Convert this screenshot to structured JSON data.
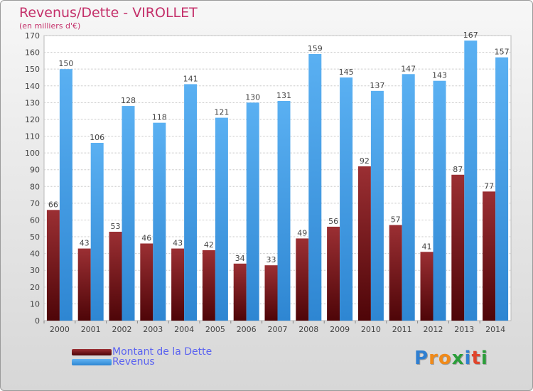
{
  "chart_data": {
    "type": "bar",
    "title": "Revenus/Dette - VIROLLET",
    "subtitle": "(en milliers d'€)",
    "categories": [
      "2000",
      "2001",
      "2002",
      "2003",
      "2004",
      "2005",
      "2006",
      "2007",
      "2008",
      "2009",
      "2010",
      "2011",
      "2012",
      "2013",
      "2014"
    ],
    "series": [
      {
        "name": "Montant de la Dette",
        "color": "#7a1a1e",
        "values": [
          66,
          43,
          53,
          46,
          43,
          42,
          34,
          33,
          49,
          56,
          92,
          57,
          41,
          87,
          77
        ]
      },
      {
        "name": "Revenus",
        "color": "#3d9be0",
        "values": [
          150,
          106,
          128,
          118,
          141,
          121,
          130,
          131,
          159,
          145,
          137,
          147,
          143,
          167,
          157
        ]
      }
    ],
    "ylim": [
      0,
      170
    ],
    "ytick_step": 10,
    "grid": true,
    "legend_position": "bottom-left"
  },
  "branding": {
    "logo_letters": [
      "P",
      "r",
      "o",
      "x",
      "i",
      "t",
      "i"
    ],
    "logo_colors": [
      "#2f7fd1",
      "#f08a1a",
      "#f08a1a",
      "#2b9e3a",
      "#2f7fd1",
      "#e0452c",
      "#2b9e3a"
    ]
  }
}
